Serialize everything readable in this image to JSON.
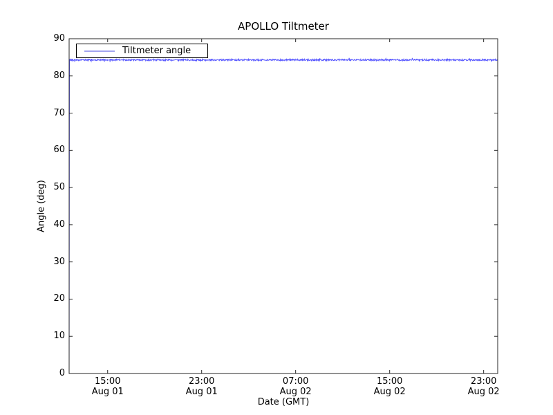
{
  "chart_data": {
    "type": "line",
    "title": "APOLLO Tiltmeter",
    "xlabel": "Date (GMT)",
    "ylabel": "Angle (deg)",
    "ylim": [
      0,
      90
    ],
    "yticks": [
      0,
      10,
      20,
      30,
      40,
      50,
      60,
      70,
      80,
      90
    ],
    "xticks": [
      {
        "pos": 0.0899,
        "time": "15:00",
        "date": "Aug 01"
      },
      {
        "pos": 0.3092,
        "time": "23:00",
        "date": "Aug 01"
      },
      {
        "pos": 0.5285,
        "time": "07:00",
        "date": "Aug 02"
      },
      {
        "pos": 0.7479,
        "time": "15:00",
        "date": "Aug 02"
      },
      {
        "pos": 0.9672,
        "time": "23:00",
        "date": "Aug 02"
      }
    ],
    "x_range": [
      "Aug 01 ~11:45 GMT",
      "Aug 03 ~00:15 GMT"
    ],
    "grid": false,
    "tick_direction": "in",
    "legend": {
      "position": "upper left",
      "entries": [
        {
          "label": "Tiltmeter angle",
          "sample_color": "#a2a4f0"
        }
      ]
    },
    "series": [
      {
        "name": "Tiltmeter angle",
        "color": "#0000ff",
        "alpha": 0.65,
        "behavior": "first sample at 0 deg at left edge (vertical rise along y-axis), then essentially constant ~84.3 deg with small high-frequency noise through the full time span",
        "start_value": 0,
        "base_value": 84.3,
        "noise_amplitude_deg": 0.22,
        "spike_amplitude_deg": 0.5,
        "spike_probability": 0.03,
        "n_points": 1300,
        "seed": 42,
        "sample_points": [
          [
            "Aug 01 11:45",
            0
          ],
          [
            "Aug 01 12:00",
            84.2
          ],
          [
            "Aug 01 15:00",
            84.3
          ],
          [
            "Aug 01 19:00",
            84.3
          ],
          [
            "Aug 01 23:00",
            84.25
          ],
          [
            "Aug 02 03:00",
            84.3
          ],
          [
            "Aug 02 07:00",
            84.3
          ],
          [
            "Aug 02 11:00",
            84.35
          ],
          [
            "Aug 02 15:00",
            84.3
          ],
          [
            "Aug 02 19:00",
            84.3
          ],
          [
            "Aug 02 23:00",
            84.4
          ]
        ]
      }
    ],
    "colors": {
      "line": "#0000ff",
      "legend_line": "#a2a4f0",
      "axis": "#262626",
      "background": "#ffffff"
    }
  }
}
